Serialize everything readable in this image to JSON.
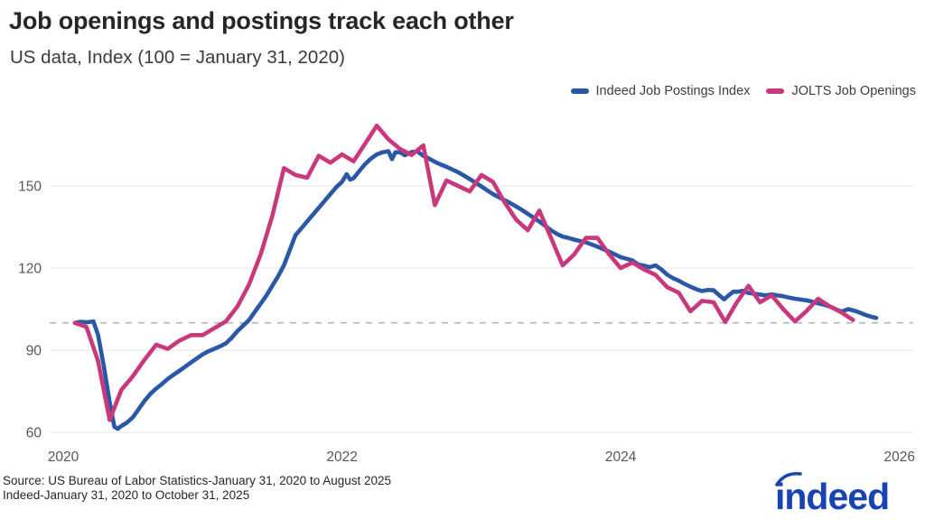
{
  "header": {
    "title": "Job openings and postings track each other",
    "subtitle": "US data, Index (100 = January 31, 2020)"
  },
  "legend": [
    {
      "label": "Indeed Job Postings Index",
      "color": "#2a57a6"
    },
    {
      "label": "JOLTS Job Openings",
      "color": "#c8397c"
    }
  ],
  "footer": {
    "source_line1": "Source: US Bureau of Labor Statistics-January 31, 2020 to August 2025",
    "source_line2": "Indeed-January 31, 2020 to October 31, 2025",
    "logo_text": "indeed",
    "logo_color": "#1843b5"
  },
  "chart_data": {
    "type": "line",
    "title": "Job openings and postings track each other",
    "subtitle": "US data, Index (100 = January 31, 2020)",
    "x_unit": "months since January 31, 2020",
    "x_axis": {
      "ticks": [
        "2020",
        "2022",
        "2024",
        "2026"
      ]
    },
    "y_axis": {
      "ticks": [
        "150",
        "120",
        "90",
        "60"
      ],
      "range": [
        55,
        180
      ]
    },
    "baseline": {
      "value": 100,
      "style": "dashed",
      "color": "#b5b5b5"
    },
    "grid_color": "#e5e5e5",
    "tick_color": "#575757",
    "legend_position": "top-right",
    "series": [
      {
        "name": "Indeed Job Postings Index",
        "color": "#2a57a6",
        "points": [
          [
            0,
            100
          ],
          [
            0.5,
            100.4
          ],
          [
            1,
            100.2
          ],
          [
            1.6,
            100.5
          ],
          [
            2,
            95.5
          ],
          [
            2.5,
            84
          ],
          [
            3,
            71
          ],
          [
            3.4,
            62
          ],
          [
            3.7,
            61.3
          ],
          [
            4,
            62.3
          ],
          [
            4.5,
            63.6
          ],
          [
            5,
            65.5
          ],
          [
            5.5,
            68.5
          ],
          [
            6,
            71.5
          ],
          [
            6.5,
            74
          ],
          [
            7,
            76
          ],
          [
            7.4,
            77.3
          ],
          [
            8,
            79.5
          ],
          [
            8.5,
            81
          ],
          [
            9,
            82.5
          ],
          [
            9.5,
            84
          ],
          [
            10,
            85.5
          ],
          [
            10.5,
            87
          ],
          [
            11,
            88.5
          ],
          [
            11.5,
            89.6
          ],
          [
            12,
            90.5
          ],
          [
            12.5,
            91.4
          ],
          [
            13,
            92.5
          ],
          [
            13.5,
            94.5
          ],
          [
            14,
            97
          ],
          [
            14.5,
            99
          ],
          [
            15,
            101
          ],
          [
            15.5,
            104
          ],
          [
            16,
            107
          ],
          [
            16.5,
            110
          ],
          [
            17,
            113.5
          ],
          [
            17.5,
            117
          ],
          [
            18,
            121
          ],
          [
            18.5,
            126.5
          ],
          [
            19,
            132
          ],
          [
            19.5,
            134.5
          ],
          [
            20,
            137
          ],
          [
            20.5,
            139.5
          ],
          [
            21,
            142
          ],
          [
            21.5,
            144.5
          ],
          [
            22,
            147
          ],
          [
            22.5,
            149.5
          ],
          [
            23,
            151.5
          ],
          [
            23.4,
            154.3
          ],
          [
            23.7,
            152.3
          ],
          [
            24,
            152.8
          ],
          [
            24.5,
            155.5
          ],
          [
            25,
            158
          ],
          [
            25.5,
            160
          ],
          [
            26,
            161.5
          ],
          [
            26.5,
            162.3
          ],
          [
            27,
            162.7
          ],
          [
            27.3,
            159.8
          ],
          [
            27.6,
            162.3
          ],
          [
            28,
            162.3
          ],
          [
            28.4,
            161.2
          ],
          [
            29,
            162.4
          ],
          [
            29.5,
            162.6
          ],
          [
            30,
            161
          ],
          [
            30.5,
            160
          ],
          [
            31,
            158.8
          ],
          [
            31.5,
            157.8
          ],
          [
            32,
            157
          ],
          [
            32.5,
            156
          ],
          [
            33,
            155
          ],
          [
            33.5,
            153.8
          ],
          [
            34,
            152.5
          ],
          [
            34.5,
            151.2
          ],
          [
            35,
            149.8
          ],
          [
            35.5,
            148.4
          ],
          [
            36,
            147
          ],
          [
            36.5,
            145.9
          ],
          [
            37,
            144.8
          ],
          [
            37.5,
            143.7
          ],
          [
            38,
            142.5
          ],
          [
            38.5,
            141.2
          ],
          [
            39,
            139.8
          ],
          [
            39.5,
            138.4
          ],
          [
            40,
            137
          ],
          [
            40.5,
            135.4
          ],
          [
            41,
            133.8
          ],
          [
            41.5,
            132.5
          ],
          [
            42,
            131.5
          ],
          [
            42.5,
            131
          ],
          [
            43,
            130.4
          ],
          [
            43.5,
            129.9
          ],
          [
            44,
            129.4
          ],
          [
            44.5,
            128.6
          ],
          [
            45,
            127.8
          ],
          [
            45.5,
            126.9
          ],
          [
            46,
            126
          ],
          [
            46.5,
            125
          ],
          [
            47,
            124
          ],
          [
            47.5,
            123.4
          ],
          [
            48,
            122.8
          ],
          [
            48.5,
            121.3
          ],
          [
            49,
            120.9
          ],
          [
            49.5,
            120.3
          ],
          [
            50,
            121
          ],
          [
            50.5,
            119.5
          ],
          [
            51,
            117.6
          ],
          [
            51.5,
            116.3
          ],
          [
            52,
            115.4
          ],
          [
            52.5,
            114.2
          ],
          [
            53,
            113.2
          ],
          [
            53.5,
            112.3
          ],
          [
            54,
            111.6
          ],
          [
            54.5,
            112
          ],
          [
            55,
            111.9
          ],
          [
            55.5,
            110
          ],
          [
            55.9,
            108.6
          ],
          [
            56.3,
            110
          ],
          [
            56.7,
            111.4
          ],
          [
            57,
            111.3
          ],
          [
            57.5,
            111.7
          ],
          [
            58,
            110.9
          ],
          [
            58.5,
            110.6
          ],
          [
            59,
            110.3
          ],
          [
            59.5,
            110
          ],
          [
            60,
            110.4
          ],
          [
            60.5,
            110
          ],
          [
            61,
            109.7
          ],
          [
            61.5,
            109.2
          ],
          [
            62,
            108.8
          ],
          [
            62.5,
            108.5
          ],
          [
            63,
            108.2
          ],
          [
            63.5,
            107.7
          ],
          [
            64,
            107.1
          ],
          [
            64.5,
            106.6
          ],
          [
            65,
            106
          ],
          [
            65.5,
            105
          ],
          [
            66,
            104.1
          ],
          [
            66.6,
            105
          ],
          [
            67.2,
            104.3
          ],
          [
            67.6,
            103.7
          ],
          [
            68,
            103
          ],
          [
            68.5,
            102.3
          ],
          [
            69,
            101.8
          ]
        ]
      },
      {
        "name": "JOLTS Job Openings",
        "color": "#c8397c",
        "points": [
          [
            0,
            100
          ],
          [
            1,
            98.5
          ],
          [
            2,
            86
          ],
          [
            3,
            64.5
          ],
          [
            4,
            75.5
          ],
          [
            5,
            80.5
          ],
          [
            6,
            86.5
          ],
          [
            7,
            92
          ],
          [
            8,
            90.5
          ],
          [
            9,
            93.5
          ],
          [
            10,
            95.5
          ],
          [
            11,
            95.5
          ],
          [
            12,
            98
          ],
          [
            13,
            100.5
          ],
          [
            14,
            106
          ],
          [
            15,
            114
          ],
          [
            16,
            125
          ],
          [
            17,
            139
          ],
          [
            18,
            156.5
          ],
          [
            19,
            154
          ],
          [
            20,
            153
          ],
          [
            21,
            161
          ],
          [
            22,
            158.5
          ],
          [
            23,
            161.5
          ],
          [
            24,
            159
          ],
          [
            25,
            165.5
          ],
          [
            26,
            172
          ],
          [
            27,
            167
          ],
          [
            28,
            163.5
          ],
          [
            29,
            161.3
          ],
          [
            30,
            164.8
          ],
          [
            31,
            143
          ],
          [
            32,
            152
          ],
          [
            33,
            150
          ],
          [
            34,
            148
          ],
          [
            35,
            154
          ],
          [
            36,
            151.5
          ],
          [
            37,
            144
          ],
          [
            38,
            137.7
          ],
          [
            39,
            133.8
          ],
          [
            40,
            141
          ],
          [
            41,
            131
          ],
          [
            42,
            121
          ],
          [
            43,
            125
          ],
          [
            44,
            131
          ],
          [
            45,
            131
          ],
          [
            46,
            125
          ],
          [
            47,
            120
          ],
          [
            48,
            122
          ],
          [
            49,
            119.5
          ],
          [
            50,
            117.5
          ],
          [
            51,
            113
          ],
          [
            52,
            111
          ],
          [
            53,
            104.2
          ],
          [
            54,
            108
          ],
          [
            55,
            107.5
          ],
          [
            56,
            100.3
          ],
          [
            57,
            107.5
          ],
          [
            58,
            113.5
          ],
          [
            59,
            107.5
          ],
          [
            60,
            110
          ],
          [
            61,
            105
          ],
          [
            62,
            100.5
          ],
          [
            63,
            104.3
          ],
          [
            64,
            108.8
          ],
          [
            65,
            106
          ],
          [
            66,
            103.8
          ],
          [
            67,
            101
          ]
        ]
      }
    ]
  }
}
